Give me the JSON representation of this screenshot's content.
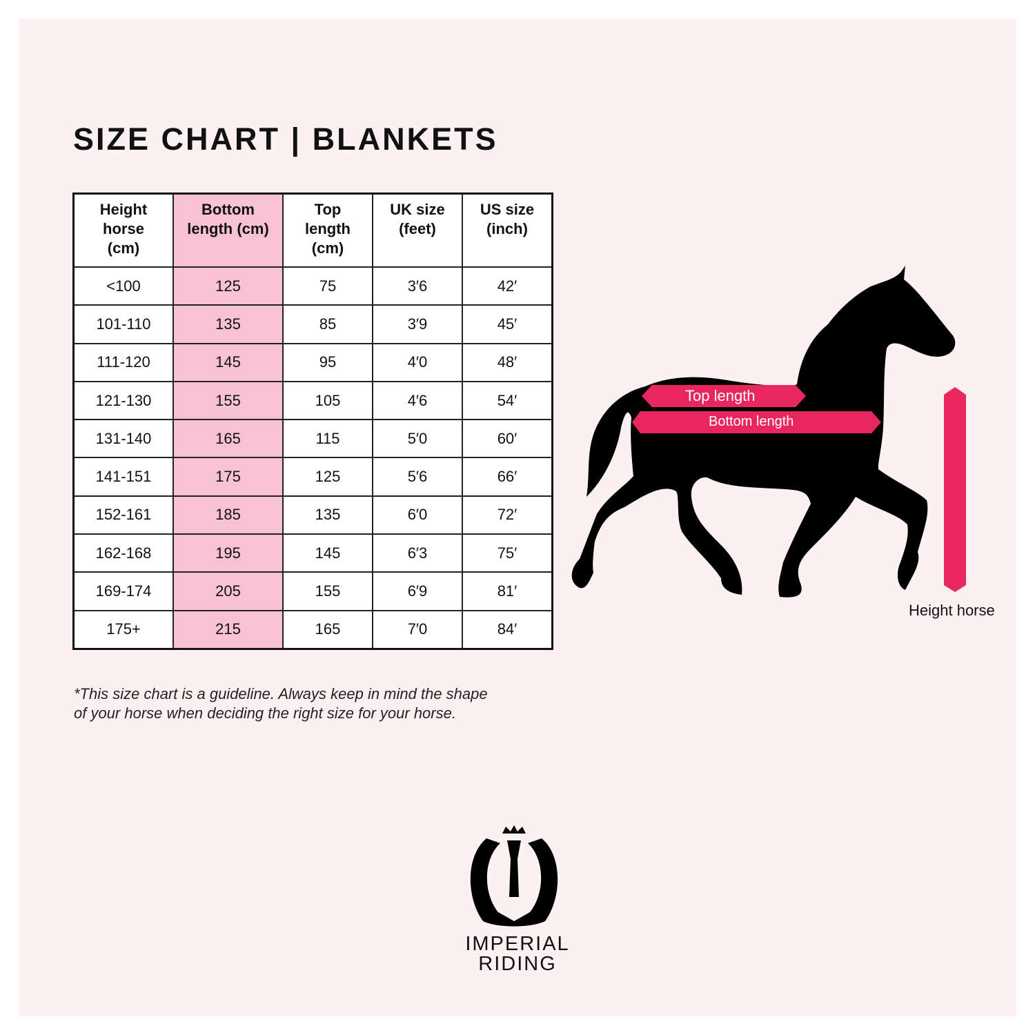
{
  "title": "SIZE CHART | BLANKETS",
  "table": {
    "headers": [
      [
        "Height",
        "horse",
        "(cm)"
      ],
      [
        "Bottom",
        "length (cm)"
      ],
      [
        "Top",
        "length",
        "(cm)"
      ],
      [
        "UK size",
        "(feet)"
      ],
      [
        "US size",
        "(inch)"
      ]
    ],
    "rows": [
      [
        "<100",
        "125",
        "75",
        "3′6",
        "42′"
      ],
      [
        "101-110",
        "135",
        "85",
        "3′9",
        "45′"
      ],
      [
        "111-120",
        "145",
        "95",
        "4′0",
        "48′"
      ],
      [
        "121-130",
        "155",
        "105",
        "4′6",
        "54′"
      ],
      [
        "131-140",
        "165",
        "115",
        "5′0",
        "60′"
      ],
      [
        "141-151",
        "175",
        "125",
        "5′6",
        "66′"
      ],
      [
        "152-161",
        "185",
        "135",
        "6′0",
        "72′"
      ],
      [
        "162-168",
        "195",
        "145",
        "6′3",
        "75′"
      ],
      [
        "169-174",
        "205",
        "155",
        "6′9",
        "81′"
      ],
      [
        "175+",
        "215",
        "165",
        "7′0",
        "84′"
      ]
    ],
    "highlight_color": "#f8c1d4"
  },
  "note": [
    "*This size chart is a guideline. Always keep in mind the shape",
    "of your horse when deciding the right size for your horse."
  ],
  "diagram": {
    "top_length": "Top length",
    "bottom_length": "Bottom length",
    "height_horse": "Height horse",
    "accent_color": "#e8275e"
  },
  "brand": {
    "line1": "IMPERIAL",
    "line2": "RIDING"
  }
}
